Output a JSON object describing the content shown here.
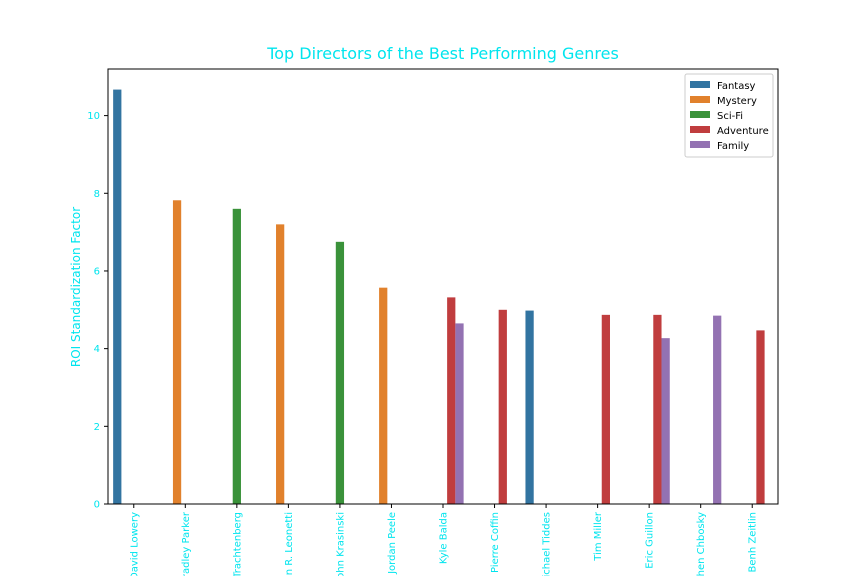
{
  "chart_data": {
    "type": "bar",
    "title": "Top Directors of the Best Performing Genres",
    "xlabel": "",
    "ylabel": "ROI Standardization Factor",
    "ylim": [
      0,
      11.2
    ],
    "yticks": [
      0,
      2,
      4,
      6,
      8,
      10
    ],
    "grid": false,
    "legend_position": "top-right",
    "categories": [
      "David Lowery",
      "Bradley Parker",
      "Trachtenberg",
      "n R. Leonetti",
      "ohn Krasinski",
      "Jordan Peele",
      "Kyle Balda",
      "Pierre Coffin",
      "ichael Tiddes",
      "Tim Miller",
      "Eric Guillon",
      "hen Chbosky",
      "Benh Zeitlin"
    ],
    "series": [
      {
        "name": "Fantasy",
        "color": "#3274a1",
        "values": [
          10.67,
          null,
          null,
          null,
          null,
          null,
          null,
          null,
          4.98,
          null,
          null,
          null,
          null
        ]
      },
      {
        "name": "Mystery",
        "color": "#e1812c",
        "values": [
          null,
          7.82,
          null,
          7.2,
          null,
          5.57,
          null,
          null,
          null,
          null,
          null,
          null,
          null
        ]
      },
      {
        "name": "Sci-Fi",
        "color": "#3a923a",
        "values": [
          null,
          null,
          7.6,
          null,
          6.75,
          null,
          null,
          null,
          null,
          null,
          null,
          null,
          null
        ]
      },
      {
        "name": "Adventure",
        "color": "#c03d3e",
        "values": [
          null,
          null,
          null,
          null,
          null,
          null,
          5.32,
          5.0,
          null,
          4.87,
          4.87,
          null,
          4.47
        ]
      },
      {
        "name": "Family",
        "color": "#9372b2",
        "values": [
          null,
          null,
          null,
          null,
          null,
          null,
          4.65,
          null,
          null,
          null,
          4.27,
          4.85,
          null
        ]
      }
    ],
    "text_color": "#00e5ee"
  }
}
